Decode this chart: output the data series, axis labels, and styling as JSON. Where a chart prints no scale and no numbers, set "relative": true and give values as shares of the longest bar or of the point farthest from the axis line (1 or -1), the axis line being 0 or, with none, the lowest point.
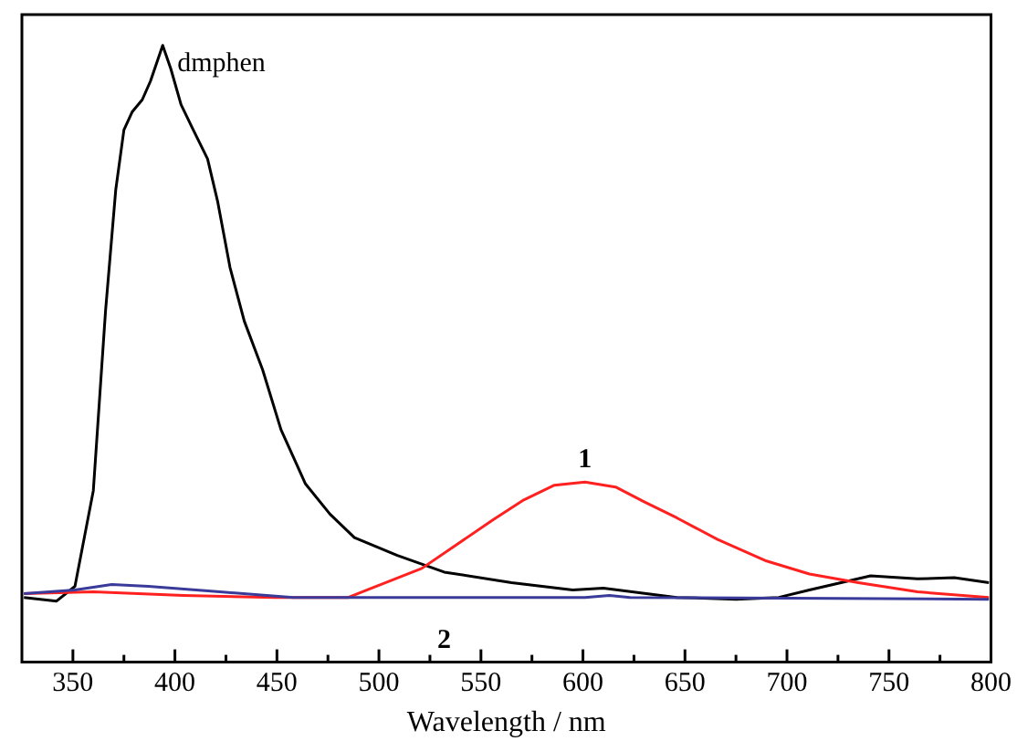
{
  "chart_data": {
    "type": "line",
    "xlabel": "Wavelength / nm",
    "relative": true,
    "grid": false,
    "legend": false,
    "marker": "none",
    "line_style": "solid",
    "tick_labels": "x",
    "xlim": [
      325,
      800
    ],
    "xticks": [
      350,
      {
        "value": 375,
        "label": null
      },
      400,
      {
        "value": 425,
        "label": null
      },
      450,
      {
        "value": 475,
        "label": null
      },
      500,
      {
        "value": 525,
        "label": null
      },
      550,
      {
        "value": 575,
        "label": null
      },
      600,
      {
        "value": 625,
        "label": null
      },
      650,
      {
        "value": 675,
        "label": null
      },
      700,
      {
        "value": 725,
        "label": null
      },
      750,
      {
        "value": 775,
        "label": null
      },
      800
    ],
    "series": [
      {
        "color": "#000000",
        "x": [
          326,
          342,
          351,
          360,
          366,
          371,
          375,
          379,
          384,
          388,
          394,
          398,
          403,
          409,
          416,
          421,
          427,
          434,
          443,
          452,
          464,
          476,
          488,
          509,
          532,
          565,
          595,
          610,
          646,
          675,
          696,
          711,
          741,
          764,
          782,
          799
        ],
        "values": [
          0.105,
          0.099,
          0.123,
          0.278,
          0.57,
          0.766,
          0.863,
          0.892,
          0.912,
          0.942,
          1.0,
          0.962,
          0.904,
          0.863,
          0.816,
          0.746,
          0.64,
          0.553,
          0.474,
          0.377,
          0.289,
          0.24,
          0.202,
          0.173,
          0.146,
          0.129,
          0.117,
          0.12,
          0.105,
          0.102,
          0.105,
          0.117,
          0.14,
          0.135,
          0.137,
          0.129
        ]
      },
      {
        "color": "#ff2020",
        "x": [
          326,
          360,
          404,
          449,
          485,
          494,
          521,
          556,
          571,
          586,
          601,
          616,
          630,
          646,
          666,
          690,
          711,
          735,
          764,
          799
        ],
        "values": [
          0.111,
          0.114,
          0.108,
          0.105,
          0.105,
          0.117,
          0.152,
          0.231,
          0.263,
          0.287,
          0.292,
          0.284,
          0.26,
          0.234,
          0.199,
          0.164,
          0.143,
          0.129,
          0.114,
          0.105
        ]
      },
      {
        "color": "#3a3a9a",
        "x": [
          326,
          351,
          369,
          387,
          422,
          458,
          601,
          613,
          623,
          799
        ],
        "values": [
          0.111,
          0.117,
          0.126,
          0.123,
          0.114,
          0.105,
          0.105,
          0.108,
          0.105,
          0.102
        ]
      }
    ],
    "annotations": [
      {
        "text": "dmphen",
        "x": 394,
        "y": 1.0
      },
      {
        "text": "1",
        "x": 601,
        "y": 0.292
      },
      {
        "text": "2",
        "x": 532,
        "y": 0.105
      }
    ]
  }
}
